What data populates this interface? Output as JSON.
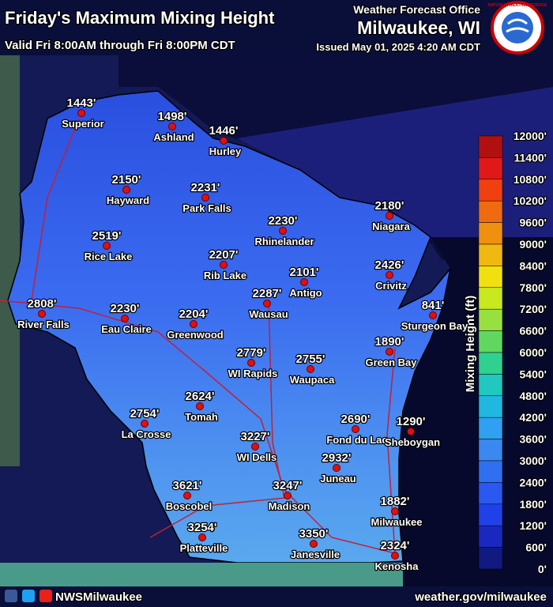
{
  "header": {
    "title": "Friday's Maximum Mixing Height",
    "valid": "Valid Fri 8:00AM through Fri 8:00PM CDT",
    "office_line": "Weather Forecast Office",
    "office": "Milwaukee, WI",
    "issued": "Issued May 01, 2025 4:20 AM CDT",
    "logo_text": "NATIONAL WEATHER SERVICE"
  },
  "cities": [
    {
      "name": "Superior",
      "value": "1443'"
    },
    {
      "name": "Ashland",
      "value": "1498'"
    },
    {
      "name": "Hurley",
      "value": "1446'"
    },
    {
      "name": "Hayward",
      "value": "2150'"
    },
    {
      "name": "Park Falls",
      "value": "2231'"
    },
    {
      "name": "Rhinelander",
      "value": "2230'"
    },
    {
      "name": "Niagara",
      "value": "2180'"
    },
    {
      "name": "Rice Lake",
      "value": "2519'"
    },
    {
      "name": "Rib Lake",
      "value": "2207'"
    },
    {
      "name": "Antigo",
      "value": "2101'"
    },
    {
      "name": "Crivitz",
      "value": "2426'"
    },
    {
      "name": "River Falls",
      "value": "2808'"
    },
    {
      "name": "Eau Claire",
      "value": "2230'"
    },
    {
      "name": "Wausau",
      "value": "2287'"
    },
    {
      "name": "Sturgeon Bay",
      "value": "841'"
    },
    {
      "name": "Greenwood",
      "value": "2204'"
    },
    {
      "name": "Green Bay",
      "value": "1890'"
    },
    {
      "name": "WI Rapids",
      "value": "2779'"
    },
    {
      "name": "Waupaca",
      "value": "2755'"
    },
    {
      "name": "Tomah",
      "value": "2624'"
    },
    {
      "name": "La Crosse",
      "value": "2754'"
    },
    {
      "name": "Fond du Lac",
      "value": "2690'"
    },
    {
      "name": "Sheboygan",
      "value": "1290'"
    },
    {
      "name": "WI Dells",
      "value": "3227'"
    },
    {
      "name": "Juneau",
      "value": "2932'"
    },
    {
      "name": "Boscobel",
      "value": "3621'"
    },
    {
      "name": "Madison",
      "value": "3247'"
    },
    {
      "name": "Milwaukee",
      "value": "1882'"
    },
    {
      "name": "Platteville",
      "value": "3254'"
    },
    {
      "name": "Janesville",
      "value": "3350'"
    },
    {
      "name": "Kenosha",
      "value": "2324'"
    }
  ],
  "legend": {
    "title": "Mixing Height (ft)",
    "labels": [
      "12000'",
      "11400'",
      "10800'",
      "10200'",
      "9600'",
      "9000'",
      "8400'",
      "7800'",
      "7200'",
      "6600'",
      "6000'",
      "5400'",
      "4800'",
      "4200'",
      "3600'",
      "3000'",
      "2400'",
      "1800'",
      "1200'",
      "600'",
      "0'"
    ]
  },
  "footer": {
    "social": "NWSMilwaukee",
    "url": "weather.gov/milwaukee"
  }
}
